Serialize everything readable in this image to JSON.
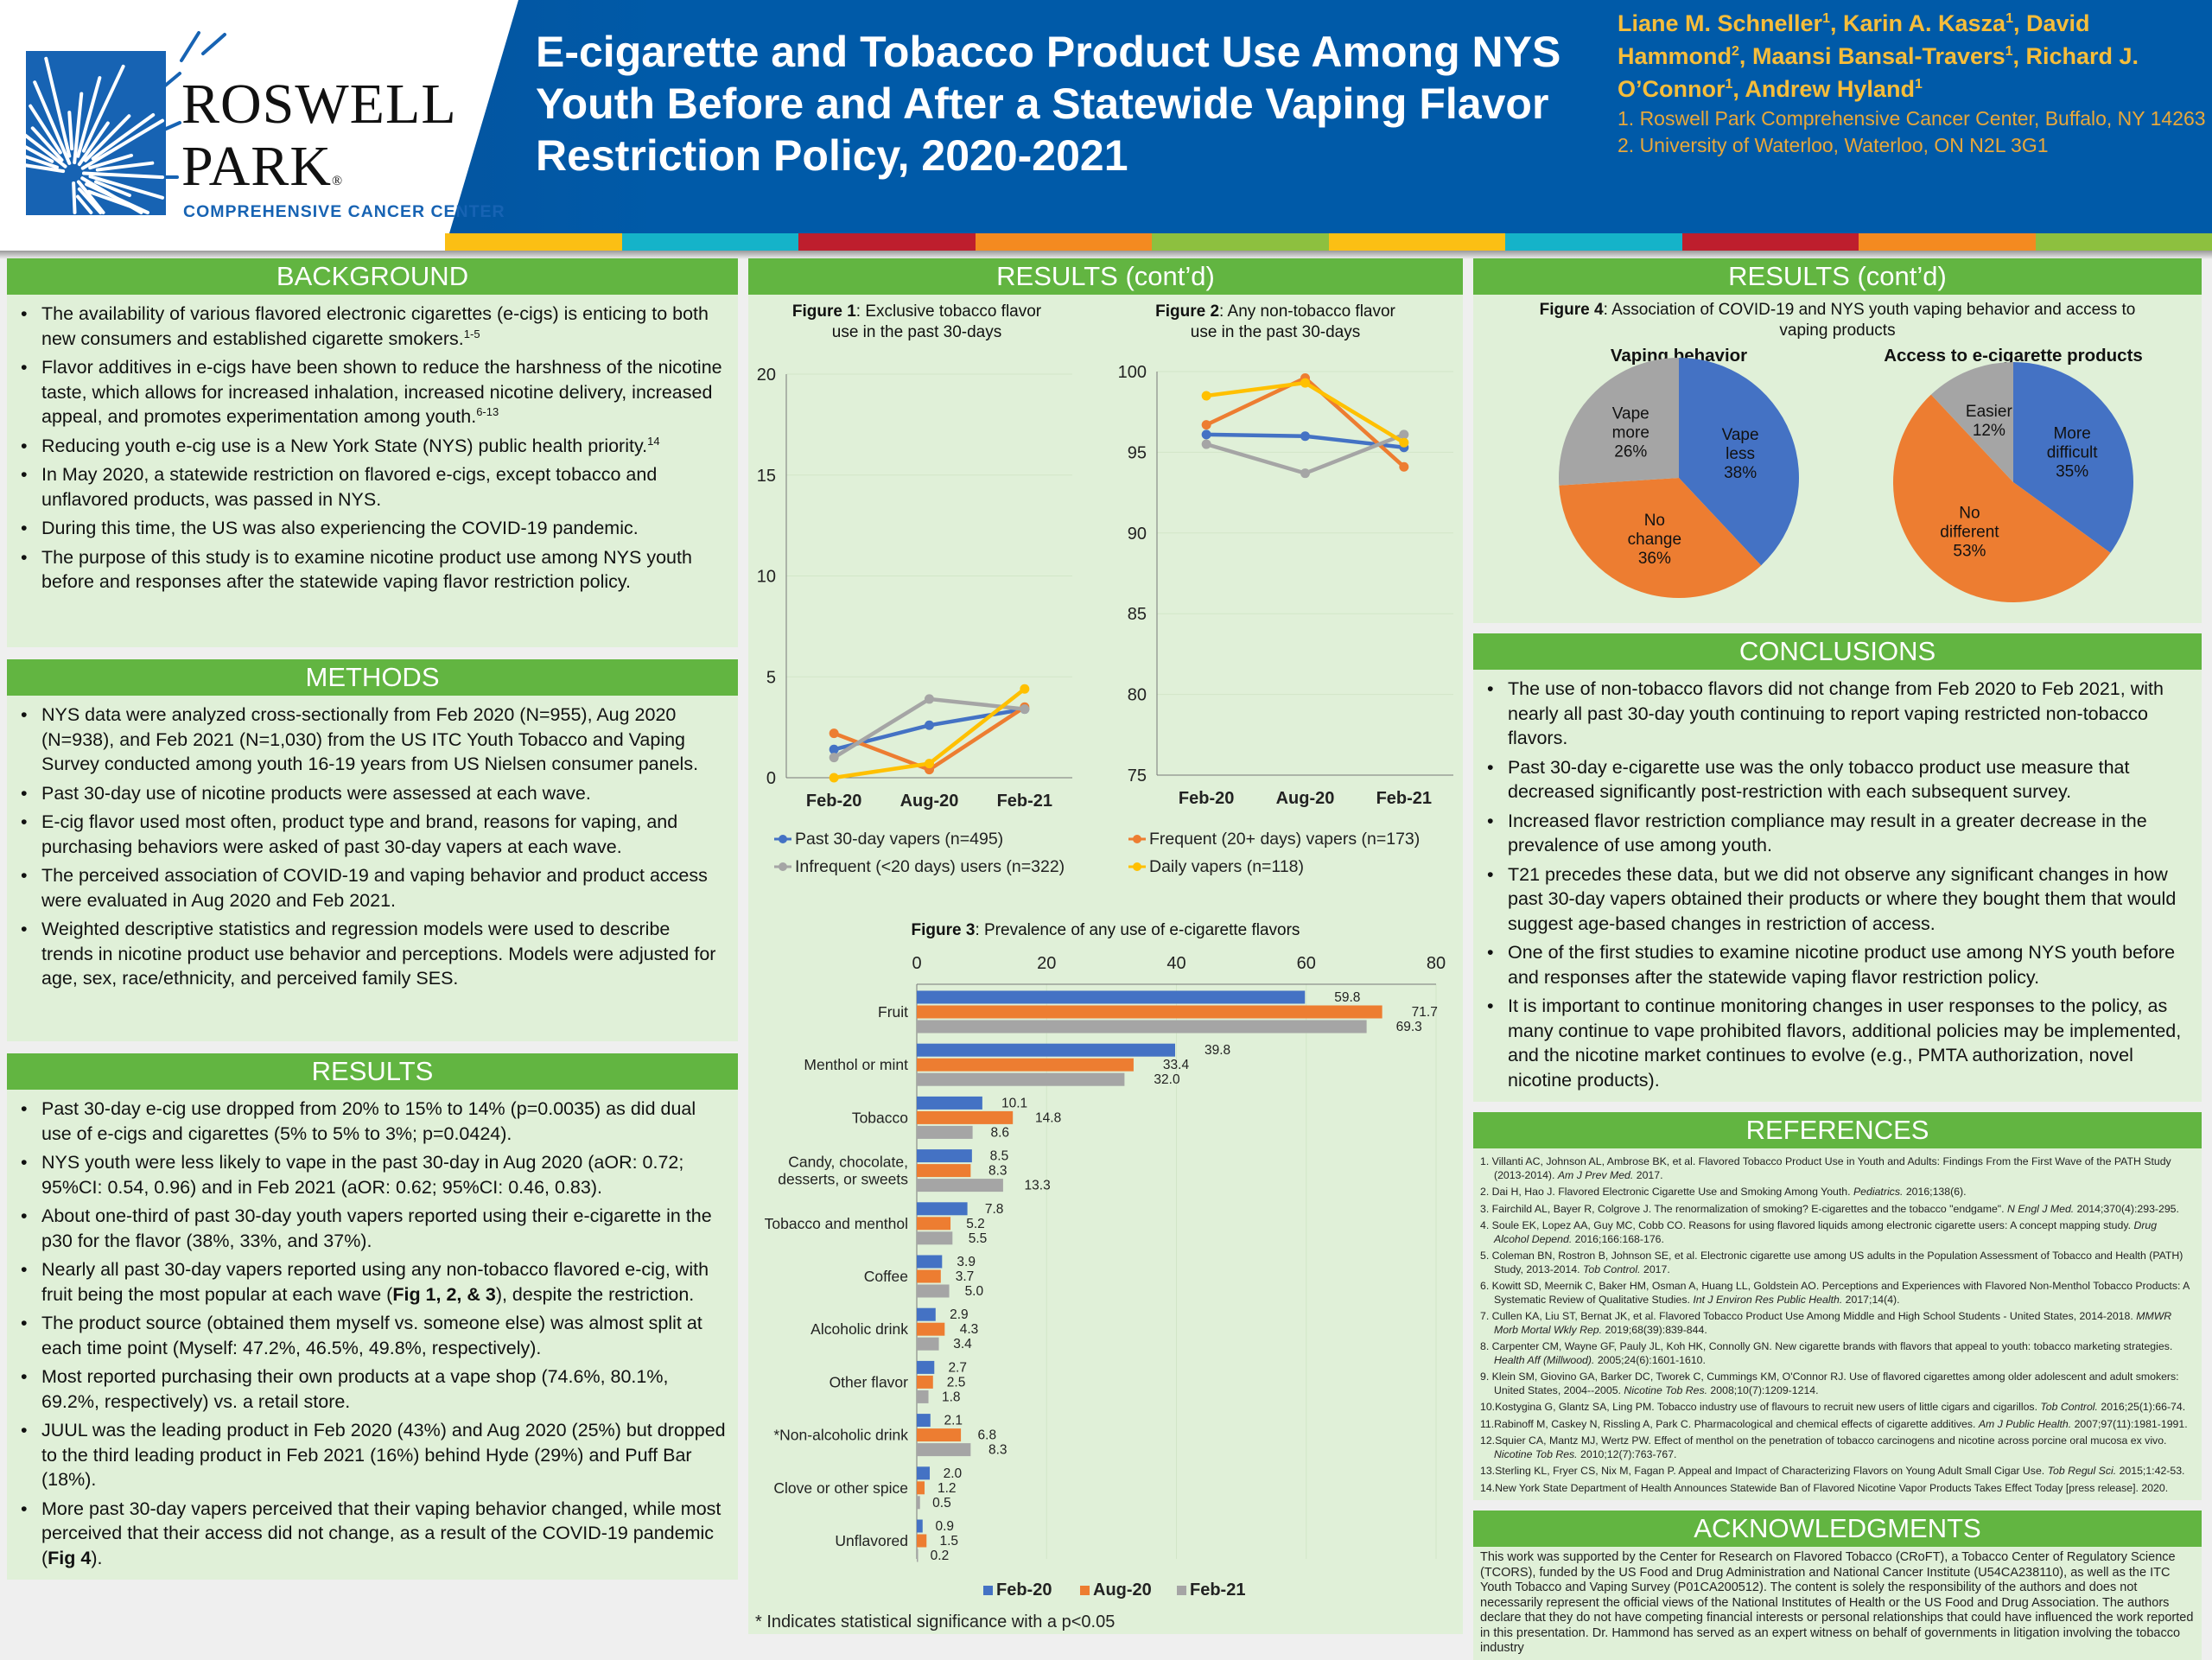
{
  "header": {
    "logo": {
      "line1": "ROSWELL",
      "line2": "PARK",
      "registered": "®",
      "subtitle": "COMPREHENSIVE CANCER CENTER"
    },
    "title": "E-cigarette and Tobacco Product Use Among NYS Youth Before and After a Statewide Vaping Flavor Restriction Policy, 2020-2021",
    "authors": [
      {
        "name": "Liane M. Schneller",
        "sup": "1"
      },
      {
        "name": "Karin A. Kasza",
        "sup": "1"
      },
      {
        "name": "David Hammond",
        "sup": "2"
      },
      {
        "name": "Maansi Bansal-Travers",
        "sup": "1"
      },
      {
        "name": "Richard J. O’Connor",
        "sup": "1"
      },
      {
        "name": "Andrew Hyland",
        "sup": "1"
      }
    ],
    "affiliations": [
      "1. Roswell Park Comprehensive Cancer Center, Buffalo, NY 14263",
      "2. University of Waterloo, Waterloo, ON N2L 3G1"
    ],
    "strip_colors": [
      "#fbbf14",
      "#15b3c9",
      "#be1e2d",
      "#f48a20",
      "#8dc03f",
      "#fbbf14",
      "#15b3c9",
      "#be1e2d",
      "#f48a20",
      "#8dc03f"
    ]
  },
  "colors": {
    "section_header": "#62b541",
    "panel": "#e0f0d8",
    "brand_blue": "#005aa8",
    "author_gold": "#f6bd3a"
  },
  "background": {
    "heading": "BACKGROUND",
    "bullets": [
      {
        "text": "The availability of various flavored electronic cigarettes (e-cigs) is enticing to both new consumers and established cigarette smokers.",
        "sup": "1-5"
      },
      {
        "text": "Flavor additives in e-cigs have been shown to reduce the harshness of the nicotine taste, which allows for increased inhalation, increased nicotine delivery, increased appeal, and promotes experimentation among youth.",
        "sup": "6-13"
      },
      {
        "text": "Reducing youth e-cig use is a New York State (NYS) public health priority.",
        "sup": "14"
      },
      {
        "text": "In May 2020, a statewide restriction on flavored e-cigs, except tobacco and unflavored products, was passed in NYS."
      },
      {
        "text": "During this time, the US was also experiencing the COVID-19 pandemic."
      },
      {
        "text": "The purpose of this study is to examine nicotine product use among NYS youth before and responses after the statewide vaping flavor restriction policy."
      }
    ]
  },
  "methods": {
    "heading": "METHODS",
    "bullets": [
      "NYS data were analyzed cross-sectionally from Feb 2020 (N=955), Aug 2020 (N=938), and Feb 2021 (N=1,030) from the US ITC Youth Tobacco and Vaping Survey conducted among youth 16-19 years from US Nielsen consumer panels.",
      "Past 30-day use of nicotine products were assessed at each wave.",
      "E-cig flavor used most often, product type and brand, reasons for vaping, and purchasing behaviors were asked of past 30-day vapers at each wave.",
      "The perceived association of COVID-19 and vaping behavior and product access were evaluated in Aug 2020 and Feb 2021.",
      "Weighted descriptive statistics and regression models were used to describe trends in nicotine product use behavior and perceptions. Models were adjusted for age, sex, race/ethnicity, and perceived family SES."
    ]
  },
  "results": {
    "heading": "RESULTS",
    "bullets": [
      {
        "pre": "Past 30-day e-cig use dropped from 20% to 15% to 14% (p=0.0035) as did dual use of e-cigs and cigarettes (5% to 5% to 3%; p=0.0424)."
      },
      {
        "pre": "NYS youth were less likely to vape in the past 30-day in Aug 2020 (aOR: 0.72; 95%CI: 0.54, 0.96) and in Feb 2021 (aOR: 0.62; 95%CI: 0.46, 0.83)."
      },
      {
        "pre": "About one-third of past 30-day youth vapers reported using their e-cigarette in the p30 for the flavor (38%, 33%, and 37%)."
      },
      {
        "pre": "Nearly all past 30-day vapers reported using any non-tobacco flavored e-cig, with fruit being the most popular at each wave (",
        "bold": "Fig 1, 2, & 3",
        "post": "), despite the restriction."
      },
      {
        "pre": "The product source (obtained them myself vs. someone else) was almost split at each time point (Myself: 47.2%, 46.5%, 49.8%, respectively)."
      },
      {
        "pre": "Most reported purchasing their own products at a vape shop (74.6%, 80.1%, 69.2%, respectively) vs. a retail store."
      },
      {
        "pre": "JUUL was the leading product in Feb 2020 (43%) and Aug 2020 (25%) but dropped to the third leading product in Feb 2021 (16%) behind Hyde (29%) and Puff Bar (18%)."
      },
      {
        "pre": "More past 30-day vapers perceived that their vaping behavior changed, while most perceived that their access did not change, as a result of the COVID-19 pandemic (",
        "bold": "Fig 4",
        "post": ")."
      }
    ]
  },
  "results_cont": {
    "heading": "RESULTS (cont’d)"
  },
  "results_cont2": {
    "heading": "RESULTS (cont’d)"
  },
  "figure4": {
    "label": "Figure 4",
    "text": ": Association of COVID-19 and NYS youth vaping behavior and access to vaping products"
  },
  "chart_data": [
    {
      "type": "line",
      "label": "Figure 1",
      "text": ": Exclusive tobacco flavor use in the past 30-days",
      "categories": [
        "Feb-20",
        "Aug-20",
        "Feb-21"
      ],
      "ylim": [
        0,
        20
      ],
      "yticks": [
        0,
        5,
        10,
        15,
        20
      ],
      "grid": true,
      "legend": "bottom",
      "series": [
        {
          "name": "Past 30-day vapers (n=495)",
          "color": "#4472c4",
          "values": [
            1.4,
            2.6,
            3.4
          ]
        },
        {
          "name": "Frequent (20+ days) vapers (n=173)",
          "color": "#ed7d31",
          "values": [
            2.2,
            0.4,
            3.5
          ]
        },
        {
          "name": "Infrequent (<20 days) users (n=322)",
          "color": "#a5a5a5",
          "values": [
            1.0,
            3.9,
            3.4
          ]
        },
        {
          "name": "Daily vapers (n=118)",
          "color": "#ffc000",
          "values": [
            0.0,
            0.7,
            4.4
          ]
        }
      ]
    },
    {
      "type": "line",
      "label": "Figure 2",
      "text": ": Any non-tobacco flavor use in the past 30-days",
      "categories": [
        "Feb-20",
        "Aug-20",
        "Feb-21"
      ],
      "ylim": [
        75,
        100
      ],
      "yticks": [
        75,
        80,
        85,
        90,
        95,
        100
      ],
      "grid": true,
      "legend": "bottom",
      "series": [
        {
          "name": "Past 30-day vapers (n=495)",
          "color": "#4472c4",
          "values": [
            96.1,
            96.0,
            95.3
          ]
        },
        {
          "name": "Frequent (20+ days) vapers (n=173)",
          "color": "#ed7d31",
          "values": [
            96.7,
            99.6,
            94.1
          ]
        },
        {
          "name": "Infrequent (<20 days) users (n=322)",
          "color": "#a5a5a5",
          "values": [
            95.5,
            93.7,
            96.1
          ]
        },
        {
          "name": "Daily vapers (n=118)",
          "color": "#ffc000",
          "values": [
            98.5,
            99.3,
            95.6
          ]
        }
      ]
    },
    {
      "type": "bar",
      "orientation": "horizontal",
      "label": "Figure 3",
      "text": ": Prevalence of any use of e-cigarette flavors",
      "xlim": [
        0,
        80
      ],
      "xticks": [
        0,
        20,
        40,
        60,
        80
      ],
      "legend": "bottom",
      "categories": [
        "Fruit",
        "Menthol or mint",
        "Tobacco",
        "Candy, chocolate, desserts, or sweets",
        "Tobacco and menthol",
        "Coffee",
        "Alcoholic drink",
        "Other flavor",
        "*Non-alcoholic drink",
        "Clove or other spice",
        "Unflavored"
      ],
      "series": [
        {
          "name": "Feb-20",
          "color": "#4472c4",
          "values": [
            59.8,
            39.8,
            10.1,
            8.5,
            7.8,
            3.9,
            2.9,
            2.7,
            2.1,
            2.0,
            0.9
          ]
        },
        {
          "name": "Aug-20",
          "color": "#ed7d31",
          "values": [
            71.7,
            33.4,
            14.8,
            8.3,
            5.2,
            3.7,
            4.3,
            2.5,
            6.8,
            1.2,
            1.5
          ]
        },
        {
          "name": "Feb-21",
          "color": "#a5a5a5",
          "values": [
            69.3,
            32.0,
            8.6,
            13.3,
            5.5,
            5.0,
            3.4,
            1.8,
            8.3,
            0.5,
            0.2
          ]
        }
      ],
      "footnote": "* Indicates statistical significance with a p<0.05"
    },
    {
      "type": "pie",
      "title": "Vaping behavior",
      "slices": [
        {
          "label": "Vape less",
          "value": 38,
          "color": "#4472c4"
        },
        {
          "label": "No change",
          "value": 36,
          "color": "#ed7d31"
        },
        {
          "label": "Vape more",
          "value": 26,
          "color": "#a5a5a5"
        }
      ]
    },
    {
      "type": "pie",
      "title": "Access to e-cigarette products",
      "slices": [
        {
          "label": "More difficult",
          "value": 35,
          "color": "#4472c4"
        },
        {
          "label": "No different",
          "value": 53,
          "color": "#ed7d31"
        },
        {
          "label": "Easier",
          "value": 12,
          "color": "#a5a5a5"
        }
      ]
    }
  ],
  "conclusions": {
    "heading": "CONCLUSIONS",
    "bullets": [
      "The use of non-tobacco flavors did not change from Feb 2020 to Feb 2021, with nearly all past 30-day youth continuing to report vaping restricted non-tobacco flavors.",
      "Past 30-day e-cigarette use was the only tobacco product use measure that decreased significantly post-restriction with each subsequent survey.",
      "Increased flavor restriction compliance may result in a greater decrease in the prevalence of use among youth.",
      "T21 precedes these data, but we did not observe any significant changes in how past 30-day vapers obtained their products or where they bought them that would suggest age-based changes in restriction of access.",
      "One of the first studies to examine nicotine product use among NYS youth before and responses after the statewide vaping flavor restriction policy.",
      "It is important to continue monitoring changes in user responses to the policy, as many continue to vape prohibited flavors, additional policies may be implemented, and the nicotine market continues to evolve (e.g., PMTA authorization, novel nicotine products)."
    ]
  },
  "references": {
    "heading": "REFERENCES",
    "items": [
      {
        "pre": "1. Villanti AC, Johnson AL, Ambrose BK, et al. Flavored Tobacco Product Use in Youth and Adults: Findings From the First Wave of the PATH Study (2013-2014). ",
        "journal": "Am J Prev Med.",
        "post": " 2017."
      },
      {
        "pre": "2. Dai H, Hao J. Flavored Electronic Cigarette Use and Smoking Among Youth. ",
        "journal": "Pediatrics.",
        "post": " 2016;138(6)."
      },
      {
        "pre": "3. Fairchild AL, Bayer R, Colgrove J. The renormalization of smoking? E-cigarettes and the tobacco \"endgame\". ",
        "journal": "N Engl J Med.",
        "post": " 2014;370(4):293-295."
      },
      {
        "pre": "4. Soule EK, Lopez AA, Guy MC, Cobb CO. Reasons for using flavored liquids among electronic cigarette users: A concept mapping study. ",
        "journal": "Drug Alcohol Depend.",
        "post": " 2016;166:168-176."
      },
      {
        "pre": "5. Coleman BN, Rostron B, Johnson SE, et al. Electronic cigarette use among US adults in the Population Assessment of Tobacco and Health (PATH) Study, 2013-2014. ",
        "journal": "Tob Control.",
        "post": " 2017."
      },
      {
        "pre": "6. Kowitt SD, Meernik C, Baker HM, Osman A, Huang LL, Goldstein AO. Perceptions and Experiences with Flavored Non-Menthol Tobacco Products: A Systematic Review of Qualitative Studies. ",
        "journal": "Int J Environ Res Public Health.",
        "post": " 2017;14(4)."
      },
      {
        "pre": "7. Cullen KA, Liu ST, Bernat JK, et al. Flavored Tobacco Product Use Among Middle and High School Students - United States, 2014-2018. ",
        "journal": "MMWR Morb Mortal Wkly Rep.",
        "post": " 2019;68(39):839-844."
      },
      {
        "pre": "8. Carpenter CM, Wayne GF, Pauly JL, Koh HK, Connolly GN. New cigarette brands with flavors that appeal to youth: tobacco marketing strategies. ",
        "journal": "Health Aff (Millwood).",
        "post": " 2005;24(6):1601-1610."
      },
      {
        "pre": "9. Klein SM, Giovino GA, Barker DC, Tworek C, Cummings KM, O'Connor RJ. Use of flavored cigarettes among older adolescent and adult smokers: United States, 2004--2005. ",
        "journal": "Nicotine Tob Res.",
        "post": " 2008;10(7):1209-1214."
      },
      {
        "pre": "10.Kostygina G, Glantz SA, Ling PM. Tobacco industry use of flavours to recruit new users of little cigars and cigarillos. ",
        "journal": "Tob Control.",
        "post": " 2016;25(1):66-74."
      },
      {
        "pre": "11.Rabinoff M, Caskey N, Rissling A, Park C. Pharmacological and chemical effects of cigarette additives. ",
        "journal": "Am J Public Health.",
        "post": " 2007;97(11):1981-1991."
      },
      {
        "pre": "12.Squier CA, Mantz MJ, Wertz PW. Effect of menthol on the penetration of tobacco carcinogens and nicotine across porcine oral mucosa ex vivo. ",
        "journal": "Nicotine Tob Res.",
        "post": " 2010;12(7):763-767."
      },
      {
        "pre": "13.Sterling KL, Fryer CS, Nix M, Fagan P. Appeal and Impact of Characterizing Flavors on Young Adult Small Cigar Use. ",
        "journal": "Tob Regul Sci.",
        "post": " 2015;1:42-53."
      },
      {
        "pre": "14.New York State Department of Health Announces Statewide Ban of Flavored Nicotine Vapor Products Takes Effect Today [press release]. 2020.",
        "journal": "",
        "post": ""
      }
    ]
  },
  "acknowledgments": {
    "heading": "ACKNOWLEDGMENTS",
    "text": "This work was supported by the Center for Research on Flavored Tobacco (CRoFT), a Tobacco Center of Regulatory Science (TCORS), funded by the US Food and Drug Administration and National Cancer Institute (U54CA238110), as well as the ITC Youth Tobacco and Vaping Survey (P01CA200512). The content is solely the responsibility of the authors and does not necessarily represent the official views of the National Institutes of Health or the US Food and Drug Association. The authors declare that they do not have competing financial interests or personal relationships that could have influenced the work reported in this presentation. Dr. Hammond has served as an expert witness on behalf of governments in litigation involving the tobacco industry"
  }
}
